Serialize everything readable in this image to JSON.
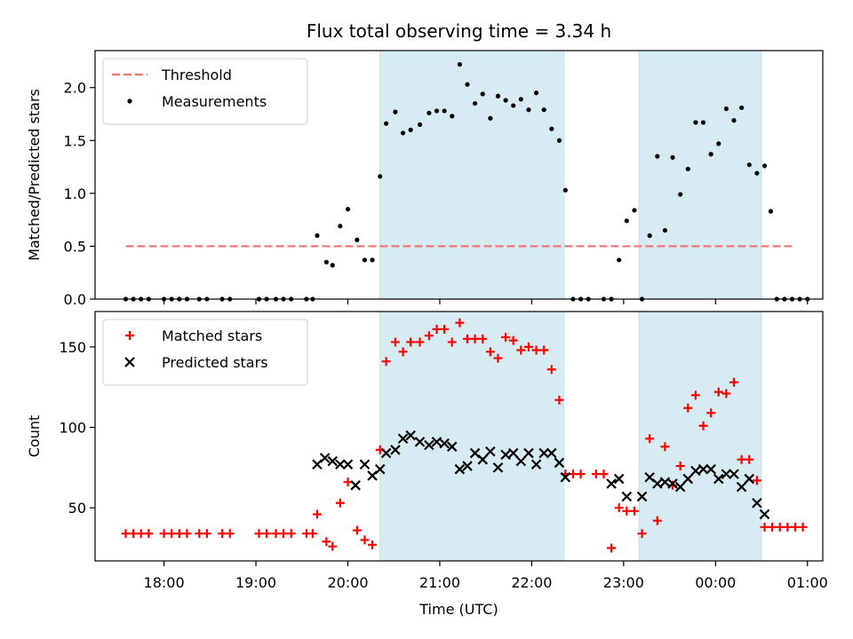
{
  "chart_data": [
    {
      "type": "scatter",
      "title": "Flux total observing time = 3.34 h",
      "ylabel": "Matched/Predicted stars",
      "xlabel": "",
      "xlim": [
        "17:15",
        "01:10"
      ],
      "ylim": [
        0,
        2.35
      ],
      "yticks": [
        "0.0",
        "0.5",
        "1.0",
        "1.5",
        "2.0"
      ],
      "shaded_intervals": [
        [
          "20:21",
          "22:21"
        ],
        [
          "23:10",
          "00:30"
        ]
      ],
      "threshold": {
        "name": "Threshold",
        "y": 0.5,
        "x_range": [
          "17:35",
          "00:50"
        ],
        "color": "#f07070"
      },
      "series": [
        {
          "name": "Measurements",
          "color": "#000000",
          "points": [
            [
              "17:35",
              0
            ],
            [
              "17:40",
              0
            ],
            [
              "17:45",
              0
            ],
            [
              "17:50",
              0
            ],
            [
              "18:00",
              0
            ],
            [
              "18:05",
              0
            ],
            [
              "18:10",
              0
            ],
            [
              "18:15",
              0
            ],
            [
              "18:23",
              0
            ],
            [
              "18:28",
              0
            ],
            [
              "18:38",
              0
            ],
            [
              "18:43",
              0
            ],
            [
              "19:02",
              0
            ],
            [
              "19:07",
              0
            ],
            [
              "19:13",
              0
            ],
            [
              "19:18",
              0
            ],
            [
              "19:23",
              0
            ],
            [
              "19:33",
              0
            ],
            [
              "19:37",
              0
            ],
            [
              "19:40",
              0.6
            ],
            [
              "19:46",
              0.35
            ],
            [
              "19:50",
              0.32
            ],
            [
              "19:55",
              0.69
            ],
            [
              "20:00",
              0.85
            ],
            [
              "20:06",
              0.56
            ],
            [
              "20:11",
              0.37
            ],
            [
              "20:16",
              0.37
            ],
            [
              "20:21",
              1.16
            ],
            [
              "20:25",
              1.66
            ],
            [
              "20:31",
              1.77
            ],
            [
              "20:36",
              1.57
            ],
            [
              "20:41",
              1.6
            ],
            [
              "20:47",
              1.65
            ],
            [
              "20:53",
              1.76
            ],
            [
              "20:58",
              1.78
            ],
            [
              "21:03",
              1.78
            ],
            [
              "21:08",
              1.73
            ],
            [
              "21:13",
              2.22
            ],
            [
              "21:18",
              2.03
            ],
            [
              "21:23",
              1.85
            ],
            [
              "21:28",
              1.94
            ],
            [
              "21:33",
              1.71
            ],
            [
              "21:38",
              1.92
            ],
            [
              "21:43",
              1.88
            ],
            [
              "21:48",
              1.83
            ],
            [
              "21:53",
              1.89
            ],
            [
              "21:58",
              1.79
            ],
            [
              "22:03",
              1.95
            ],
            [
              "22:08",
              1.79
            ],
            [
              "22:13",
              1.61
            ],
            [
              "22:18",
              1.5
            ],
            [
              "22:22",
              1.03
            ],
            [
              "22:27",
              0
            ],
            [
              "22:32",
              0
            ],
            [
              "22:37",
              0
            ],
            [
              "22:47",
              0
            ],
            [
              "22:52",
              0
            ],
            [
              "22:57",
              0.37
            ],
            [
              "23:02",
              0.74
            ],
            [
              "23:07",
              0.84
            ],
            [
              "23:12",
              0
            ],
            [
              "23:17",
              0.6
            ],
            [
              "23:22",
              1.35
            ],
            [
              "23:27",
              0.65
            ],
            [
              "23:32",
              1.34
            ],
            [
              "23:37",
              0.99
            ],
            [
              "23:42",
              1.23
            ],
            [
              "23:47",
              1.67
            ],
            [
              "23:52",
              1.67
            ],
            [
              "23:57",
              1.37
            ],
            [
              "00:02",
              1.47
            ],
            [
              "00:07",
              1.8
            ],
            [
              "00:12",
              1.69
            ],
            [
              "00:17",
              1.81
            ],
            [
              "00:22",
              1.27
            ],
            [
              "00:27",
              1.19
            ],
            [
              "00:32",
              1.26
            ],
            [
              "00:36",
              0.83
            ],
            [
              "00:40",
              0
            ],
            [
              "00:45",
              0
            ],
            [
              "00:50",
              0
            ],
            [
              "00:55",
              0
            ],
            [
              "01:00",
              0
            ]
          ]
        }
      ]
    },
    {
      "type": "scatter",
      "title": "",
      "ylabel": "Count",
      "xlabel": "Time (UTC)",
      "xlim": [
        "17:15",
        "01:10"
      ],
      "ylim": [
        17,
        172
      ],
      "yticks": [
        "50",
        "100",
        "150"
      ],
      "xticks": [
        "18:00",
        "19:00",
        "20:00",
        "21:00",
        "22:00",
        "23:00",
        "00:00",
        "01:00"
      ],
      "shaded_intervals": [
        [
          "20:21",
          "22:21"
        ],
        [
          "23:10",
          "00:30"
        ]
      ],
      "series": [
        {
          "name": "Matched stars",
          "color": "#ff0000",
          "marker": "plus",
          "points": [
            [
              "17:35",
              34
            ],
            [
              "17:40",
              34
            ],
            [
              "17:45",
              34
            ],
            [
              "17:50",
              34
            ],
            [
              "18:00",
              34
            ],
            [
              "18:05",
              34
            ],
            [
              "18:10",
              34
            ],
            [
              "18:15",
              34
            ],
            [
              "18:23",
              34
            ],
            [
              "18:28",
              34
            ],
            [
              "18:38",
              34
            ],
            [
              "18:43",
              34
            ],
            [
              "19:02",
              34
            ],
            [
              "19:07",
              34
            ],
            [
              "19:13",
              34
            ],
            [
              "19:18",
              34
            ],
            [
              "19:23",
              34
            ],
            [
              "19:33",
              34
            ],
            [
              "19:37",
              34
            ],
            [
              "19:40",
              46
            ],
            [
              "19:46",
              29
            ],
            [
              "19:50",
              26
            ],
            [
              "19:55",
              53
            ],
            [
              "20:00",
              66
            ],
            [
              "20:06",
              36
            ],
            [
              "20:11",
              30
            ],
            [
              "20:16",
              27
            ],
            [
              "20:21",
              86
            ],
            [
              "20:25",
              141
            ],
            [
              "20:31",
              153
            ],
            [
              "20:36",
              147
            ],
            [
              "20:41",
              153
            ],
            [
              "20:47",
              153
            ],
            [
              "20:53",
              157
            ],
            [
              "20:58",
              161
            ],
            [
              "21:03",
              161
            ],
            [
              "21:08",
              153
            ],
            [
              "21:13",
              165
            ],
            [
              "21:18",
              155
            ],
            [
              "21:23",
              155
            ],
            [
              "21:28",
              155
            ],
            [
              "21:33",
              147
            ],
            [
              "21:38",
              143
            ],
            [
              "21:43",
              156
            ],
            [
              "21:48",
              154
            ],
            [
              "21:53",
              148
            ],
            [
              "21:58",
              150
            ],
            [
              "22:03",
              148
            ],
            [
              "22:08",
              148
            ],
            [
              "22:13",
              136
            ],
            [
              "22:18",
              117
            ],
            [
              "22:22",
              71
            ],
            [
              "22:27",
              71
            ],
            [
              "22:32",
              71
            ],
            [
              "22:42",
              71
            ],
            [
              "22:47",
              71
            ],
            [
              "22:52",
              25
            ],
            [
              "22:57",
              50
            ],
            [
              "23:02",
              48
            ],
            [
              "23:07",
              48
            ],
            [
              "23:12",
              34
            ],
            [
              "23:17",
              93
            ],
            [
              "23:22",
              42
            ],
            [
              "23:27",
              88
            ],
            [
              "23:32",
              64
            ],
            [
              "23:37",
              76
            ],
            [
              "23:42",
              112
            ],
            [
              "23:47",
              120
            ],
            [
              "23:52",
              101
            ],
            [
              "23:57",
              109
            ],
            [
              "00:02",
              122
            ],
            [
              "00:07",
              121
            ],
            [
              "00:12",
              128
            ],
            [
              "00:17",
              80
            ],
            [
              "00:22",
              80
            ],
            [
              "00:27",
              67
            ],
            [
              "00:32",
              38
            ],
            [
              "00:37",
              38
            ],
            [
              "00:42",
              38
            ],
            [
              "00:47",
              38
            ],
            [
              "00:52",
              38
            ],
            [
              "00:57",
              38
            ]
          ]
        },
        {
          "name": "Predicted stars",
          "color": "#000000",
          "marker": "x",
          "points": [
            [
              "19:40",
              77
            ],
            [
              "19:45",
              81
            ],
            [
              "19:50",
              79
            ],
            [
              "19:55",
              77
            ],
            [
              "20:00",
              77
            ],
            [
              "20:05",
              64
            ],
            [
              "20:11",
              77
            ],
            [
              "20:16",
              70
            ],
            [
              "20:21",
              74
            ],
            [
              "20:25",
              84
            ],
            [
              "20:31",
              86
            ],
            [
              "20:36",
              93
            ],
            [
              "20:41",
              95
            ],
            [
              "20:47",
              91
            ],
            [
              "20:53",
              89
            ],
            [
              "20:58",
              91
            ],
            [
              "21:03",
              90
            ],
            [
              "21:08",
              88
            ],
            [
              "21:13",
              74
            ],
            [
              "21:18",
              76
            ],
            [
              "21:23",
              84
            ],
            [
              "21:28",
              80
            ],
            [
              "21:33",
              85
            ],
            [
              "21:38",
              75
            ],
            [
              "21:43",
              83
            ],
            [
              "21:48",
              84
            ],
            [
              "21:53",
              79
            ],
            [
              "21:58",
              84
            ],
            [
              "22:03",
              77
            ],
            [
              "22:08",
              84
            ],
            [
              "22:13",
              84
            ],
            [
              "22:18",
              78
            ],
            [
              "22:22",
              69
            ],
            [
              "22:52",
              65
            ],
            [
              "22:57",
              68
            ],
            [
              "23:02",
              57
            ],
            [
              "23:12",
              57
            ],
            [
              "23:17",
              69
            ],
            [
              "23:22",
              65
            ],
            [
              "23:27",
              66
            ],
            [
              "23:32",
              65
            ],
            [
              "23:37",
              63
            ],
            [
              "23:42",
              68
            ],
            [
              "23:47",
              73
            ],
            [
              "23:52",
              74
            ],
            [
              "23:57",
              74
            ],
            [
              "00:02",
              68
            ],
            [
              "00:07",
              71
            ],
            [
              "00:12",
              71
            ],
            [
              "00:17",
              63
            ],
            [
              "00:22",
              68
            ],
            [
              "00:27",
              53
            ],
            [
              "00:32",
              46
            ]
          ]
        }
      ]
    }
  ]
}
